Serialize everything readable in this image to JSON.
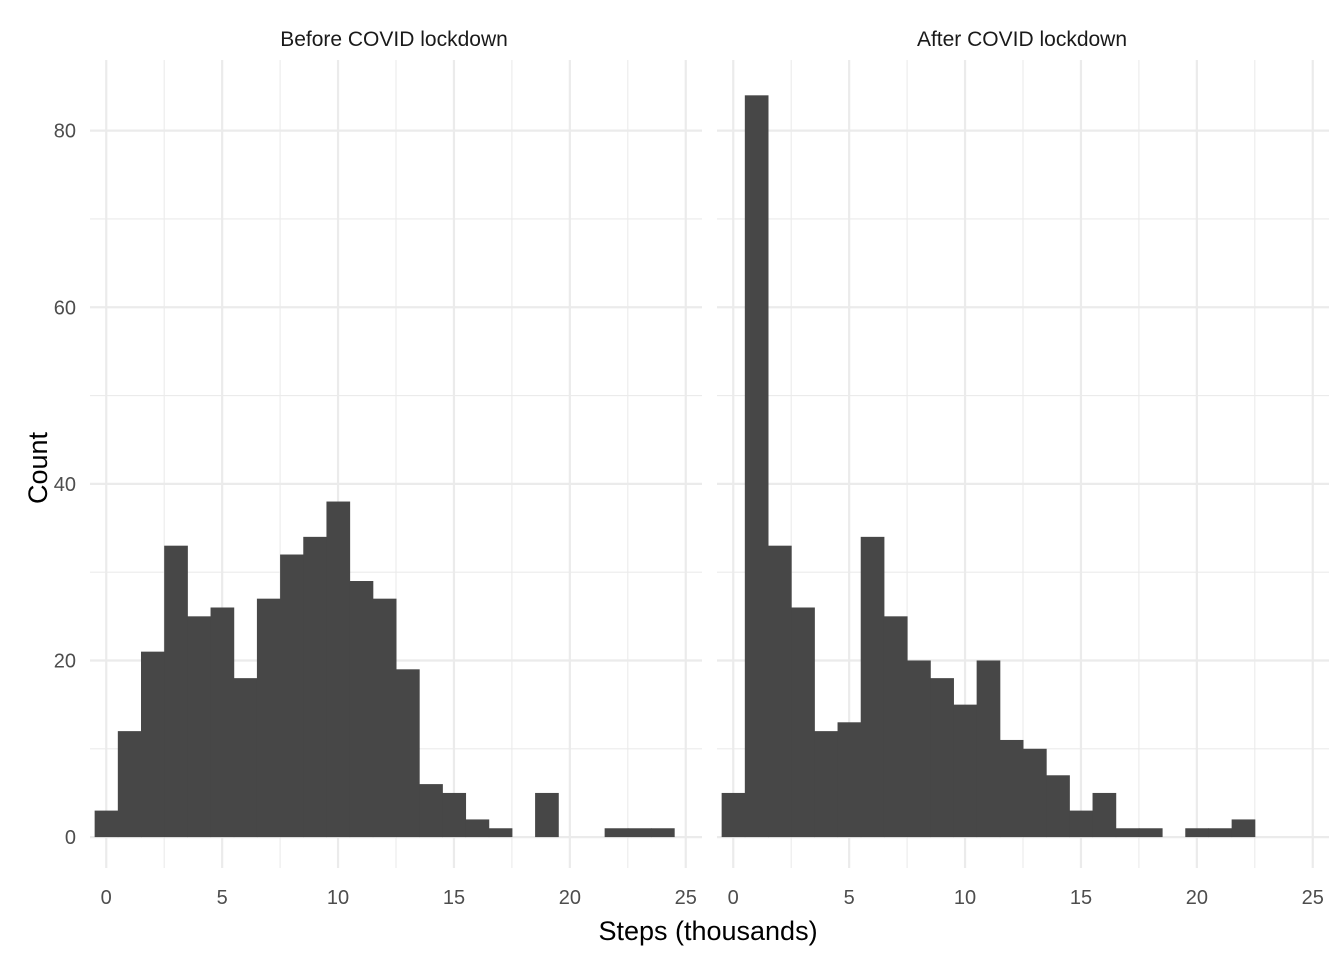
{
  "chart_data": {
    "type": "bar",
    "chart_kind": "faceted histogram",
    "xlabel": "Steps (thousands)",
    "ylabel": "Count",
    "xlim": [
      -0.7,
      25.7
    ],
    "ylim": [
      -3.5,
      88
    ],
    "x_ticks": [
      "0",
      "5",
      "10",
      "15",
      "20",
      "25"
    ],
    "y_ticks": [
      "0",
      "20",
      "40",
      "60",
      "80"
    ],
    "x_tick_values": [
      0,
      5,
      10,
      15,
      20,
      25
    ],
    "y_tick_values": [
      0,
      20,
      40,
      60,
      80
    ],
    "bin_width": 1,
    "grid": true,
    "bar_color": "#474747",
    "panels": [
      {
        "title": "Before COVID lockdown",
        "bins": [
          {
            "x": 0,
            "count": 3
          },
          {
            "x": 1,
            "count": 12
          },
          {
            "x": 2,
            "count": 21
          },
          {
            "x": 3,
            "count": 33
          },
          {
            "x": 4,
            "count": 25
          },
          {
            "x": 5,
            "count": 26
          },
          {
            "x": 6,
            "count": 18
          },
          {
            "x": 7,
            "count": 27
          },
          {
            "x": 8,
            "count": 32
          },
          {
            "x": 9,
            "count": 34
          },
          {
            "x": 10,
            "count": 38
          },
          {
            "x": 11,
            "count": 29
          },
          {
            "x": 12,
            "count": 27
          },
          {
            "x": 13,
            "count": 19
          },
          {
            "x": 14,
            "count": 6
          },
          {
            "x": 15,
            "count": 5
          },
          {
            "x": 16,
            "count": 2
          },
          {
            "x": 17,
            "count": 1
          },
          {
            "x": 18,
            "count": 0
          },
          {
            "x": 19,
            "count": 5
          },
          {
            "x": 20,
            "count": 0
          },
          {
            "x": 21,
            "count": 0
          },
          {
            "x": 22,
            "count": 1
          },
          {
            "x": 23,
            "count": 1
          },
          {
            "x": 24,
            "count": 1
          }
        ]
      },
      {
        "title": "After COVID lockdown",
        "bins": [
          {
            "x": 0,
            "count": 5
          },
          {
            "x": 1,
            "count": 84
          },
          {
            "x": 2,
            "count": 33
          },
          {
            "x": 3,
            "count": 26
          },
          {
            "x": 4,
            "count": 12
          },
          {
            "x": 5,
            "count": 13
          },
          {
            "x": 6,
            "count": 34
          },
          {
            "x": 7,
            "count": 25
          },
          {
            "x": 8,
            "count": 20
          },
          {
            "x": 9,
            "count": 18
          },
          {
            "x": 10,
            "count": 15
          },
          {
            "x": 11,
            "count": 20
          },
          {
            "x": 12,
            "count": 11
          },
          {
            "x": 13,
            "count": 10
          },
          {
            "x": 14,
            "count": 7
          },
          {
            "x": 15,
            "count": 3
          },
          {
            "x": 16,
            "count": 5
          },
          {
            "x": 17,
            "count": 1
          },
          {
            "x": 18,
            "count": 1
          },
          {
            "x": 19,
            "count": 0
          },
          {
            "x": 20,
            "count": 1
          },
          {
            "x": 21,
            "count": 1
          },
          {
            "x": 22,
            "count": 2
          }
        ]
      }
    ]
  }
}
